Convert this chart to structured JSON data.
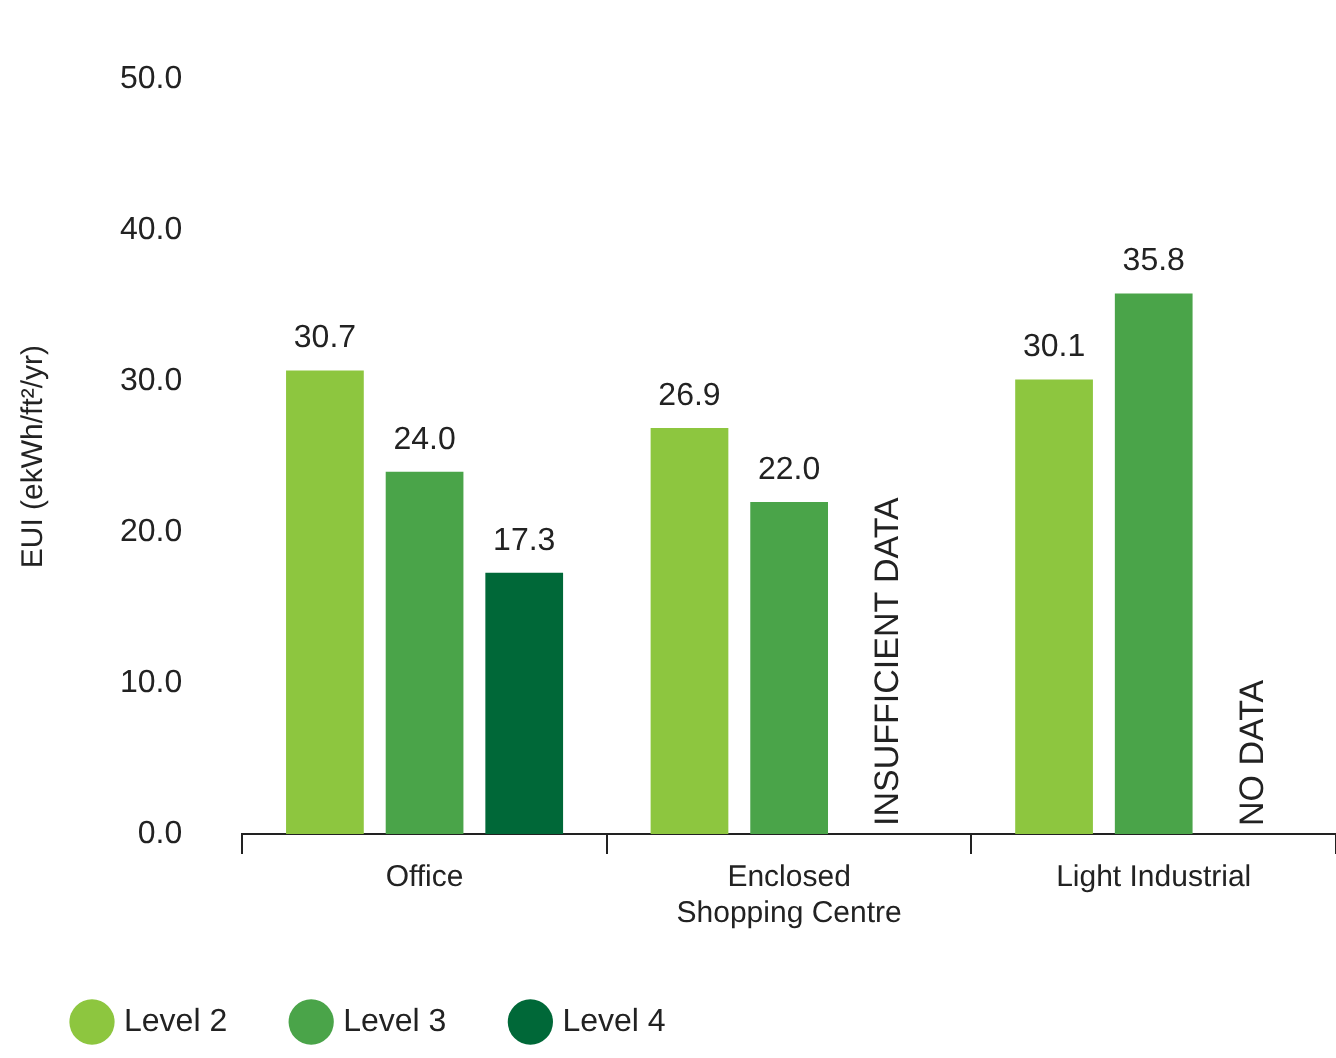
{
  "chart_data": {
    "type": "bar",
    "ylabel": "EUI (ekWh/ft²/yr)",
    "categories": [
      "Office",
      "Enclosed Shopping Centre",
      "Light Industrial"
    ],
    "series": [
      {
        "name": "Level 2",
        "color": "#8dc63f",
        "values": [
          30.7,
          26.9,
          30.1
        ],
        "value_labels": [
          "30.7",
          "26.9",
          "30.1"
        ]
      },
      {
        "name": "Level 3",
        "color": "#4aa449",
        "values": [
          24.0,
          22.0,
          35.8
        ],
        "value_labels": [
          "24.0",
          "22.0",
          "35.8"
        ]
      },
      {
        "name": "Level 4",
        "color": "#006838",
        "values": [
          17.3,
          null,
          null
        ],
        "value_labels": [
          "17.3",
          null,
          null
        ]
      }
    ],
    "ylim": [
      0,
      50
    ],
    "yticks": [
      {
        "value": 0,
        "label": "0.0"
      },
      {
        "value": 10,
        "label": "10.0"
      },
      {
        "value": 20,
        "label": "20.0"
      },
      {
        "value": 30,
        "label": "30.0"
      },
      {
        "value": 40,
        "label": "40.0"
      },
      {
        "value": 50,
        "label": "50.0"
      }
    ],
    "grid": false,
    "legend": "bottom left",
    "annotations": [
      "INSUFFICIENT DATA",
      "NO DATA"
    ]
  }
}
